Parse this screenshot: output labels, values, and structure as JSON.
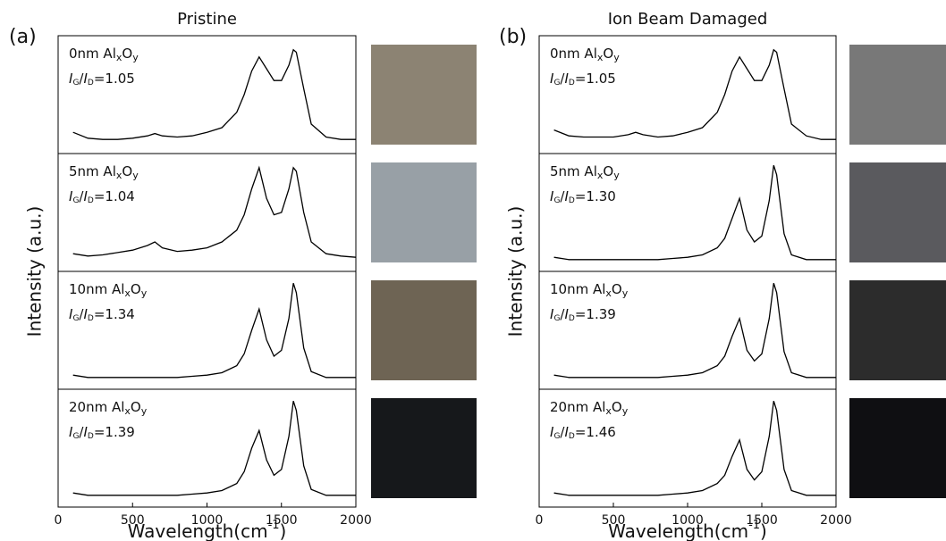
{
  "chart_data": [
    {
      "type": "line",
      "label": "(a)",
      "title": "Pristine",
      "y_label": "Intensity (a.u.)",
      "x_label": [
        "Wavelength(cm",
        "-1",
        ")"
      ],
      "xlim": [
        0,
        2000
      ],
      "xticks": [
        0,
        500,
        1000,
        1500,
        2000
      ],
      "ylim": [
        0,
        1
      ],
      "x": [
        100,
        200,
        300,
        400,
        500,
        600,
        650,
        700,
        800,
        900,
        1000,
        1100,
        1200,
        1250,
        1300,
        1350,
        1400,
        1450,
        1500,
        1550,
        1580,
        1600,
        1650,
        1700,
        1800,
        1900,
        2000
      ],
      "series": [
        {
          "label_parts": [
            "0nm Al",
            "x",
            "O",
            "y"
          ],
          "ratio_parts": [
            "I",
            "G",
            "/",
            "I",
            "D",
            "=1.05"
          ],
          "color": "#000000",
          "values": [
            0.18,
            0.13,
            0.12,
            0.12,
            0.13,
            0.15,
            0.17,
            0.15,
            0.14,
            0.15,
            0.18,
            0.22,
            0.35,
            0.5,
            0.7,
            0.82,
            0.72,
            0.62,
            0.62,
            0.75,
            0.88,
            0.86,
            0.55,
            0.25,
            0.14,
            0.12,
            0.12
          ]
        },
        {
          "label_parts": [
            "5nm Al",
            "x",
            "O",
            "y"
          ],
          "ratio_parts": [
            "I",
            "G",
            "/",
            "I",
            "D",
            "=1.04"
          ],
          "color": "#000000",
          "values": [
            0.15,
            0.13,
            0.14,
            0.16,
            0.18,
            0.22,
            0.25,
            0.2,
            0.17,
            0.18,
            0.2,
            0.25,
            0.35,
            0.48,
            0.7,
            0.88,
            0.62,
            0.48,
            0.5,
            0.7,
            0.88,
            0.85,
            0.5,
            0.25,
            0.15,
            0.13,
            0.12
          ]
        },
        {
          "label_parts": [
            "10nm Al",
            "x",
            "O",
            "y"
          ],
          "ratio_parts": [
            "I",
            "G",
            "/",
            "I",
            "D",
            "=1.34"
          ],
          "color": "#000000",
          "values": [
            0.12,
            0.1,
            0.1,
            0.1,
            0.1,
            0.1,
            0.1,
            0.1,
            0.1,
            0.11,
            0.12,
            0.14,
            0.2,
            0.3,
            0.5,
            0.68,
            0.42,
            0.28,
            0.33,
            0.6,
            0.9,
            0.82,
            0.35,
            0.15,
            0.1,
            0.1,
            0.1
          ]
        },
        {
          "label_parts": [
            "20nm Al",
            "x",
            "O",
            "y"
          ],
          "ratio_parts": [
            "I",
            "G",
            "/",
            "I",
            "D",
            "=1.39"
          ],
          "color": "#000000",
          "values": [
            0.12,
            0.1,
            0.1,
            0.1,
            0.1,
            0.1,
            0.1,
            0.1,
            0.1,
            0.11,
            0.12,
            0.14,
            0.2,
            0.3,
            0.5,
            0.65,
            0.4,
            0.27,
            0.32,
            0.6,
            0.9,
            0.82,
            0.35,
            0.15,
            0.1,
            0.1,
            0.1
          ]
        }
      ]
    },
    {
      "type": "line",
      "label": "(b)",
      "title": "Ion Beam Damaged",
      "y_label": "Intensity (a.u.)",
      "x_label": [
        "Wavelength(cm",
        "-1",
        ")"
      ],
      "xlim": [
        0,
        2000
      ],
      "xticks": [
        0,
        500,
        1000,
        1500,
        2000
      ],
      "ylim": [
        0,
        1
      ],
      "x": [
        100,
        200,
        300,
        400,
        500,
        600,
        650,
        700,
        800,
        900,
        1000,
        1100,
        1200,
        1250,
        1300,
        1350,
        1400,
        1450,
        1500,
        1550,
        1580,
        1600,
        1650,
        1700,
        1800,
        1900,
        2000
      ],
      "series": [
        {
          "label_parts": [
            "0nm Al",
            "x",
            "O",
            "y"
          ],
          "ratio_parts": [
            "I",
            "G",
            "/",
            "I",
            "D",
            "=1.05"
          ],
          "color": "#000000",
          "values": [
            0.2,
            0.15,
            0.14,
            0.14,
            0.14,
            0.16,
            0.18,
            0.16,
            0.14,
            0.15,
            0.18,
            0.22,
            0.35,
            0.5,
            0.7,
            0.82,
            0.72,
            0.62,
            0.62,
            0.75,
            0.88,
            0.86,
            0.55,
            0.25,
            0.15,
            0.12,
            0.12
          ]
        },
        {
          "label_parts": [
            "5nm Al",
            "x",
            "O",
            "y"
          ],
          "ratio_parts": [
            "I",
            "G",
            "/",
            "I",
            "D",
            "=1.30"
          ],
          "color": "#000000",
          "values": [
            0.12,
            0.1,
            0.1,
            0.1,
            0.1,
            0.1,
            0.1,
            0.1,
            0.1,
            0.11,
            0.12,
            0.14,
            0.2,
            0.28,
            0.45,
            0.62,
            0.35,
            0.25,
            0.3,
            0.6,
            0.9,
            0.82,
            0.32,
            0.14,
            0.1,
            0.1,
            0.1
          ]
        },
        {
          "label_parts": [
            "10nm Al",
            "x",
            "O",
            "y"
          ],
          "ratio_parts": [
            "I",
            "G",
            "/",
            "I",
            "D",
            "=1.39"
          ],
          "color": "#000000",
          "values": [
            0.12,
            0.1,
            0.1,
            0.1,
            0.1,
            0.1,
            0.1,
            0.1,
            0.1,
            0.11,
            0.12,
            0.14,
            0.2,
            0.28,
            0.45,
            0.6,
            0.33,
            0.24,
            0.3,
            0.6,
            0.9,
            0.82,
            0.32,
            0.14,
            0.1,
            0.1,
            0.1
          ]
        },
        {
          "label_parts": [
            "20nm Al",
            "x",
            "O",
            "y"
          ],
          "ratio_parts": [
            "I",
            "G",
            "/",
            "I",
            "D",
            "=1.46"
          ],
          "color": "#000000",
          "values": [
            0.12,
            0.1,
            0.1,
            0.1,
            0.1,
            0.1,
            0.1,
            0.1,
            0.1,
            0.11,
            0.12,
            0.14,
            0.2,
            0.27,
            0.43,
            0.57,
            0.32,
            0.23,
            0.3,
            0.6,
            0.9,
            0.82,
            0.32,
            0.14,
            0.1,
            0.1,
            0.1
          ]
        }
      ]
    }
  ]
}
